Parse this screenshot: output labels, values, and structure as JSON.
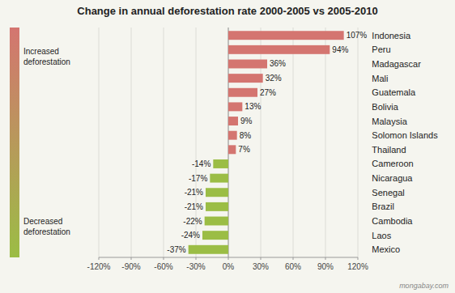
{
  "chart_data": {
    "type": "bar",
    "orientation": "horizontal",
    "title": "Change in annual deforestation rate 2000-2005 vs 2005-2010",
    "categories": [
      "Indonesia",
      "Peru",
      "Madagascar",
      "Mali",
      "Guatemala",
      "Bolivia",
      "Malaysia",
      "Solomon Islands",
      "Thailand",
      "Cameroon",
      "Nicaragua",
      "Senegal",
      "Brazil",
      "Cambodia",
      "Laos",
      "Mexico"
    ],
    "values": [
      107,
      94,
      36,
      32,
      27,
      13,
      9,
      8,
      7,
      -14,
      -17,
      -21,
      -21,
      -22,
      -24,
      -37
    ],
    "value_labels": [
      "107%",
      "94%",
      "36%",
      "32%",
      "27%",
      "13%",
      "9%",
      "8%",
      "7%",
      "-14%",
      "-17%",
      "-21%",
      "-21%",
      "-22%",
      "-24%",
      "-37%"
    ],
    "data_labels": true,
    "colors": [
      "#d47570",
      "#d47570",
      "#d47570",
      "#d47570",
      "#d47570",
      "#d47570",
      "#d47570",
      "#d47570",
      "#d47570",
      "#9bbd45",
      "#9bbd45",
      "#9bbd45",
      "#9bbd45",
      "#9bbd45",
      "#9bbd45",
      "#9bbd45"
    ],
    "xlim": [
      -120,
      120
    ],
    "xticks": [
      {
        "value": -120,
        "label": "-120%"
      },
      {
        "value": -90,
        "label": "-90%"
      },
      {
        "value": -60,
        "label": "-60%"
      },
      {
        "value": -30,
        "label": "-30%"
      },
      {
        "value": 0,
        "label": "0%"
      },
      {
        "value": 30,
        "label": "30%"
      },
      {
        "value": 60,
        "label": "60%"
      },
      {
        "value": 90,
        "label": "90%"
      },
      {
        "value": 120,
        "label": "120%"
      }
    ],
    "grid": true,
    "annotations": [
      "Increased\ndeforestation",
      "Decreased\ndeforestation",
      "mongabay.com"
    ]
  }
}
